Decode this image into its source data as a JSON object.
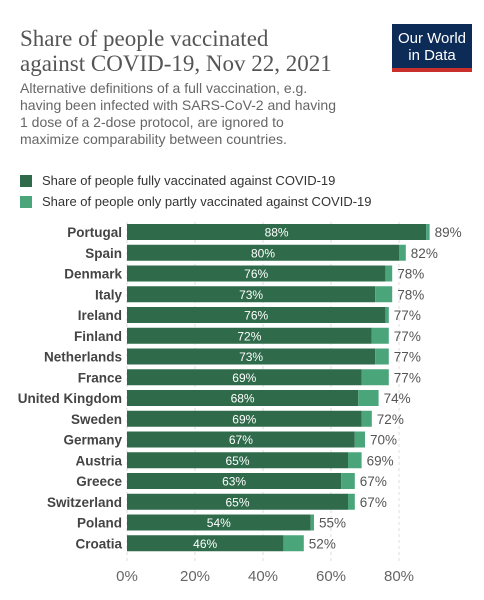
{
  "header": {
    "title_line1": "Share of people vaccinated",
    "title_line2": "against COVID-19, Nov 22, 2021",
    "subtitle_lines": [
      "Alternative definitions of a full vaccination, e.g.",
      "having been infected with SARS-CoV-2 and having",
      "1 dose of a 2-dose protocol, are ignored to",
      "maximize comparability between countries."
    ],
    "logo_line1": "Our World",
    "logo_line2": "in Data"
  },
  "colors": {
    "full": "#2f6b4a",
    "partial": "#4aa57a",
    "logo_bg": "#0d2b57",
    "logo_accent": "#c9302c"
  },
  "chart_data": {
    "type": "bar",
    "orientation": "horizontal",
    "stacked": true,
    "categories": [
      "Portugal",
      "Spain",
      "Denmark",
      "Italy",
      "Ireland",
      "Finland",
      "Netherlands",
      "France",
      "United Kingdom",
      "Sweden",
      "Germany",
      "Austria",
      "Greece",
      "Switzerland",
      "Poland",
      "Croatia"
    ],
    "series": [
      {
        "name": "Share of people fully vaccinated against COVID-19",
        "values": [
          88,
          80,
          76,
          73,
          76,
          72,
          73,
          69,
          68,
          69,
          67,
          65,
          63,
          65,
          54,
          46
        ]
      },
      {
        "name": "Share of people only partly vaccinated against COVID-19",
        "values": [
          1,
          2,
          2,
          5,
          1,
          5,
          4,
          8,
          6,
          3,
          3,
          4,
          4,
          2,
          1,
          6
        ]
      }
    ],
    "totals": [
      89,
      82,
      78,
      78,
      77,
      77,
      77,
      77,
      74,
      72,
      70,
      69,
      67,
      67,
      55,
      52
    ],
    "inner_labels": [
      "88%",
      "80%",
      "76%",
      "73%",
      "76%",
      "72%",
      "73%",
      "69%",
      "68%",
      "69%",
      "67%",
      "65%",
      "63%",
      "65%",
      "54%",
      "46%"
    ],
    "total_labels": [
      "89%",
      "82%",
      "78%",
      "78%",
      "77%",
      "77%",
      "77%",
      "77%",
      "74%",
      "72%",
      "70%",
      "69%",
      "67%",
      "67%",
      "55%",
      "52%"
    ],
    "x_ticks": [
      0,
      20,
      40,
      60,
      80
    ],
    "x_tick_labels": [
      "0%",
      "20%",
      "40%",
      "60%",
      "80%"
    ],
    "xlim": [
      0,
      88.8
    ],
    "grid": true,
    "legend_position": "top-left"
  }
}
